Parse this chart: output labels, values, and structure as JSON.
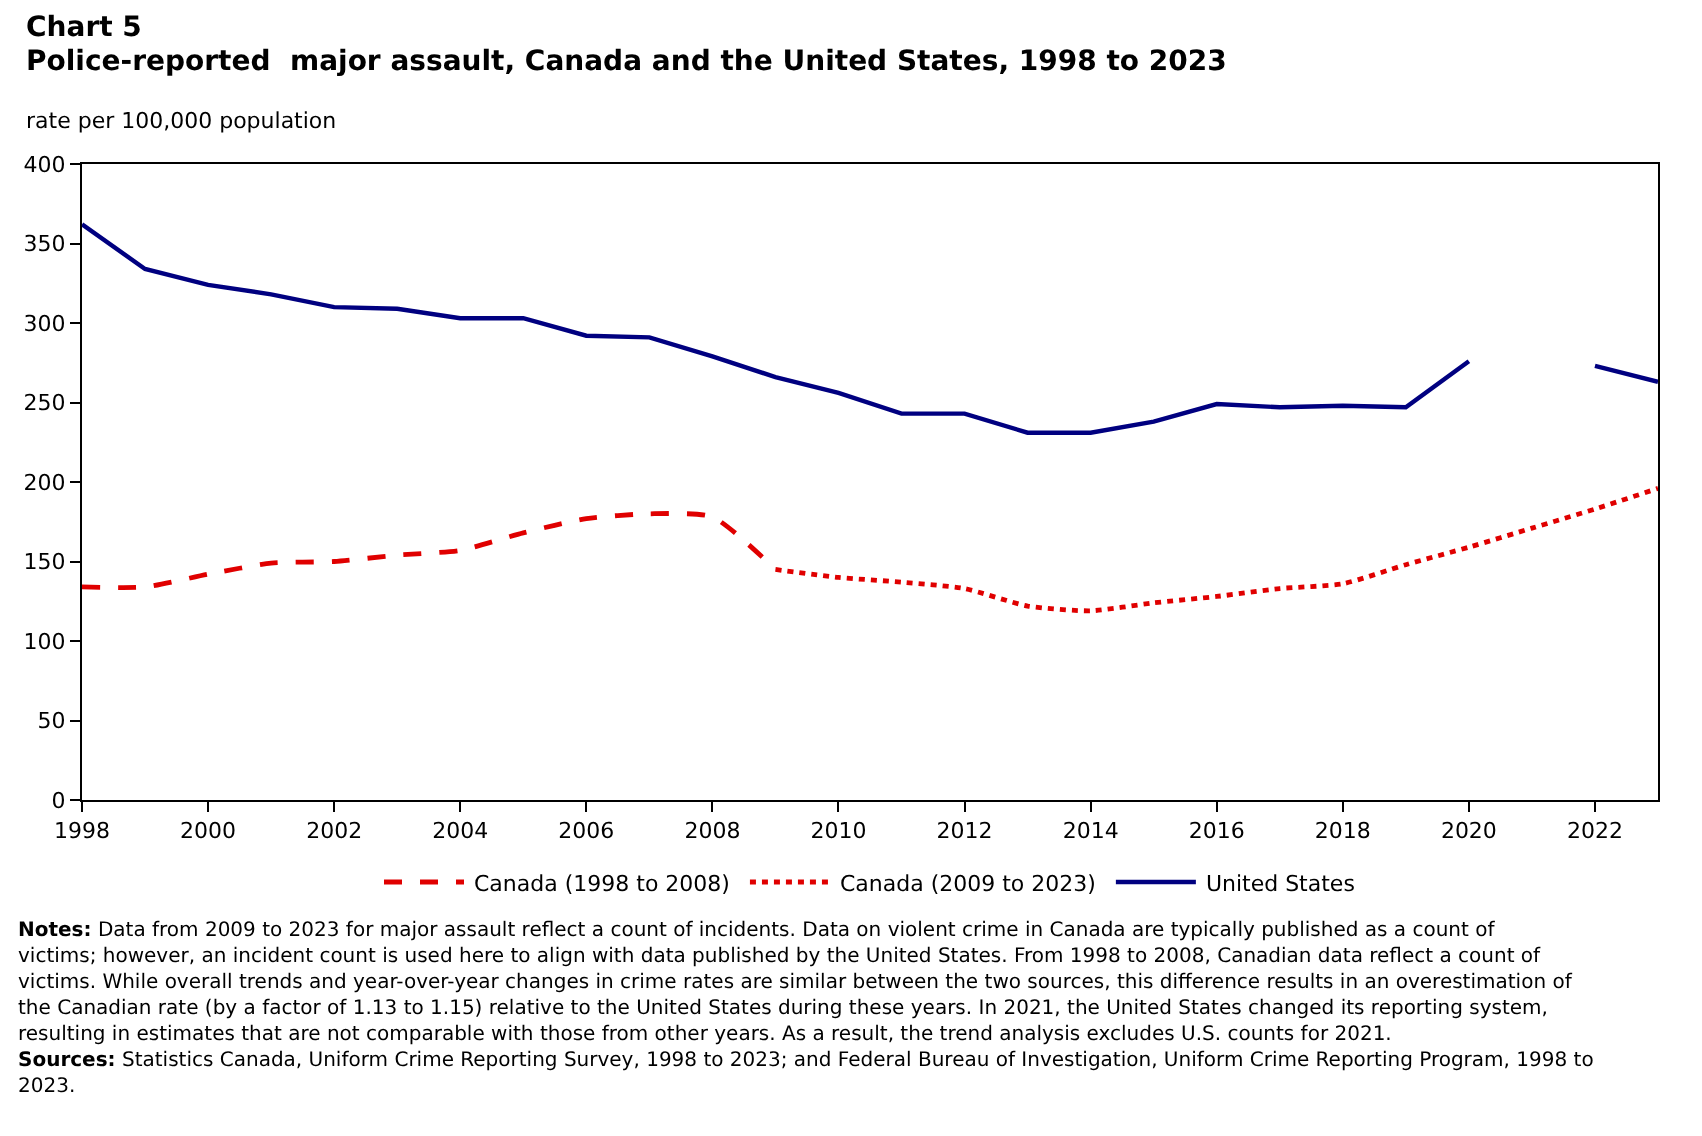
{
  "chart_data": {
    "type": "line",
    "title": "Chart 5",
    "subtitle": "Police-reported  major assault, Canada and the United States, 1998 to 2023",
    "ylabel": "rate per 100,000 population",
    "x": [
      1998,
      1999,
      2000,
      2001,
      2002,
      2003,
      2004,
      2005,
      2006,
      2007,
      2008,
      2009,
      2010,
      2011,
      2012,
      2013,
      2014,
      2015,
      2016,
      2017,
      2018,
      2019,
      2020,
      2021,
      2022,
      2023
    ],
    "series": [
      {
        "name": "Canada (1998 to 2008)",
        "color": "#e00000",
        "line_style": "dashed",
        "x": [
          1998,
          1999,
          2000,
          2001,
          2002,
          2003,
          2004,
          2005,
          2006,
          2007,
          2008,
          2009
        ],
        "values": [
          134,
          134,
          142,
          149,
          150,
          154,
          157,
          168,
          177,
          180,
          178,
          145
        ]
      },
      {
        "name": "Canada (2009 to 2023)",
        "color": "#e00000",
        "line_style": "dotted",
        "x": [
          2009,
          2010,
          2011,
          2012,
          2013,
          2014,
          2015,
          2016,
          2017,
          2018,
          2019,
          2020,
          2021,
          2022,
          2023
        ],
        "values": [
          145,
          140,
          137,
          133,
          122,
          119,
          124,
          128,
          133,
          136,
          148,
          159,
          171,
          183,
          196
        ]
      },
      {
        "name": "United States",
        "color": "#000080",
        "line_style": "solid",
        "values": [
          362,
          334,
          324,
          318,
          310,
          309,
          303,
          303,
          292,
          291,
          279,
          266,
          256,
          243,
          243,
          231,
          231,
          238,
          249,
          247,
          248,
          247,
          276,
          null,
          273,
          263
        ]
      }
    ],
    "xlim": [
      1998,
      2023
    ],
    "xticks": [
      1998,
      2000,
      2002,
      2004,
      2006,
      2008,
      2010,
      2012,
      2014,
      2016,
      2018,
      2020,
      2022
    ],
    "ylim": [
      0,
      400
    ],
    "yticks": [
      0,
      50,
      100,
      150,
      200,
      250,
      300,
      350,
      400
    ],
    "grid": false,
    "legend": "bottom",
    "marker": "none",
    "annotations": [
      "**Notes:** Data from 2009 to 2023 for major assault reflect a count of incidents. Data on violent crime in Canada are typically published as a count of victims; however, an incident count is used here to align with data published by the United States. From 1998 to 2008, Canadian data reflect a count of victims. While overall trends and year-over-year changes in crime rates are similar between the two sources, this difference results in an overestimation of the Canadian rate (by a factor of 1.13 to 1.15) relative to the United States during these years. In 2021, the United States changed its reporting system, resulting in estimates that are not comparable with those from other years. As a result, the trend analysis excludes U.S. counts for 2021.",
      "**Sources:** Statistics Canada, Uniform Crime Reporting Survey, 1998 to 2023; and Federal Bureau of Investigation, Uniform Crime Reporting Program, 1998 to 2023."
    ]
  }
}
